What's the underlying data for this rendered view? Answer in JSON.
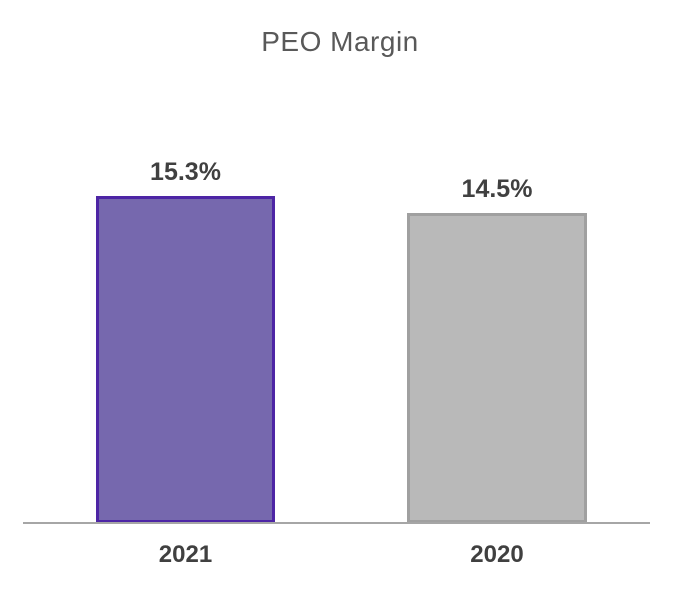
{
  "chart_data": {
    "type": "bar",
    "title": "PEO Margin",
    "categories": [
      "2021",
      "2020"
    ],
    "values": [
      15.3,
      14.5
    ],
    "value_labels": [
      "15.3%",
      "14.5%"
    ],
    "unit": "%",
    "ylim": [
      0,
      15.3
    ],
    "grid": false,
    "legend": "none",
    "series_colors": [
      {
        "fill": "#7668AE",
        "border": "#4D25A5"
      },
      {
        "fill": "#B9B9B9",
        "border": "#A0A0A0"
      }
    ],
    "axis_line_color": "#A6A6A6",
    "title_color": "#595959",
    "label_color": "#404040"
  }
}
